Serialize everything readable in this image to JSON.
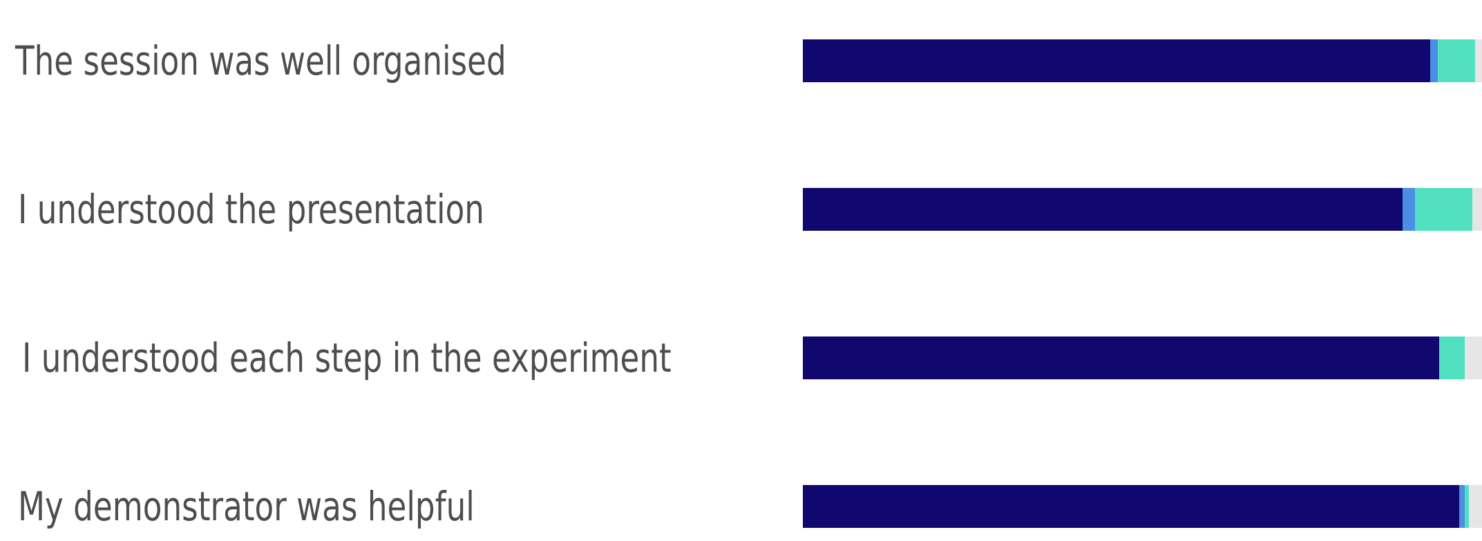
{
  "chart_data": {
    "type": "bar",
    "orientation": "horizontal",
    "stacked": true,
    "categories": [
      "The session was well organised",
      "I understood the presentation",
      "I understood each step in the experiment",
      "My demonstrator was helpful"
    ],
    "series": [
      {
        "color": "#11086f",
        "values": [
          90.8,
          86.8,
          92.1,
          95.0
        ]
      },
      {
        "color": "#4a8fe3",
        "values": [
          1.1,
          1.8,
          0.0,
          0.8
        ]
      },
      {
        "color": "#52e1c0",
        "values": [
          5.4,
          8.3,
          3.7,
          0.6
        ]
      },
      {
        "color": "#e6e6e6",
        "values": [
          2.7,
          3.1,
          4.2,
          3.6
        ]
      }
    ],
    "xlim": [
      0,
      100
    ],
    "title": "",
    "xlabel": "",
    "ylabel": "",
    "grid": false,
    "legend": "none"
  }
}
